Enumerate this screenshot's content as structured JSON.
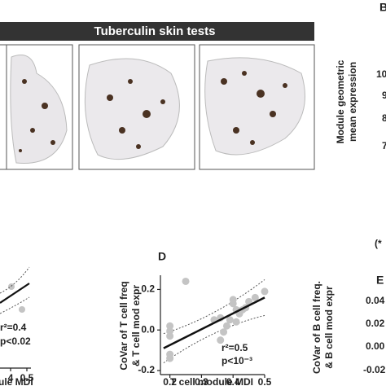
{
  "header": {
    "title": "Tuberculin skin tests"
  },
  "panel_b": {
    "label": "B",
    "y_label": [
      "Module geometric",
      "mean expression"
    ],
    "ticks": [
      "10",
      "9",
      "8",
      "7"
    ],
    "note": "(*"
  },
  "panel_c": {
    "annotations": [
      "r²=0.4",
      "p<0.02"
    ],
    "x_ticks": [
      "4",
      "0.5"
    ],
    "x_label": "ule MDI"
  },
  "chart_data": {
    "type": "scatter",
    "panel_label": "D",
    "y_label": [
      "CoVar of T cell freq",
      "& T cell mod expr"
    ],
    "x_label": "T cell module MDI",
    "x": [
      0.25,
      0.2,
      0.2,
      0.2,
      0.2,
      0.2,
      0.39,
      0.4,
      0.4,
      0.41,
      0.42,
      0.43,
      0.44,
      0.45,
      0.47,
      0.5,
      0.36,
      0.34,
      0.38,
      0.37,
      0.36,
      0.41
    ],
    "values": [
      0.24,
      0.02,
      -0.005,
      -0.03,
      -0.12,
      -0.14,
      0.05,
      0.13,
      0.15,
      0.1,
      0.08,
      0.1,
      0.11,
      0.14,
      0.16,
      0.19,
      0.06,
      0.05,
      0.02,
      -0.01,
      -0.05,
      0.04
    ],
    "color": "#c4c4c4",
    "fit": {
      "x": [
        0.18,
        0.5
      ],
      "y": [
        -0.09,
        0.16
      ]
    },
    "annotations": [
      "r²=0.5",
      "p<10⁻³"
    ],
    "xlim": [
      0.17,
      0.5
    ],
    "ylim": [
      -0.22,
      0.27
    ],
    "xticks": [
      0.2,
      0.3,
      0.4,
      0.5
    ],
    "yticks": [
      0.2,
      {
        "value": 0,
        "label": "0.0"
      },
      -0.2
    ]
  },
  "panel_e": {
    "label": "E",
    "y_label": [
      "CoVar of B cell freq.",
      "& B cell mod expr"
    ],
    "ticks": [
      "0.04",
      "0.02",
      "0.00",
      "-0.02"
    ]
  }
}
